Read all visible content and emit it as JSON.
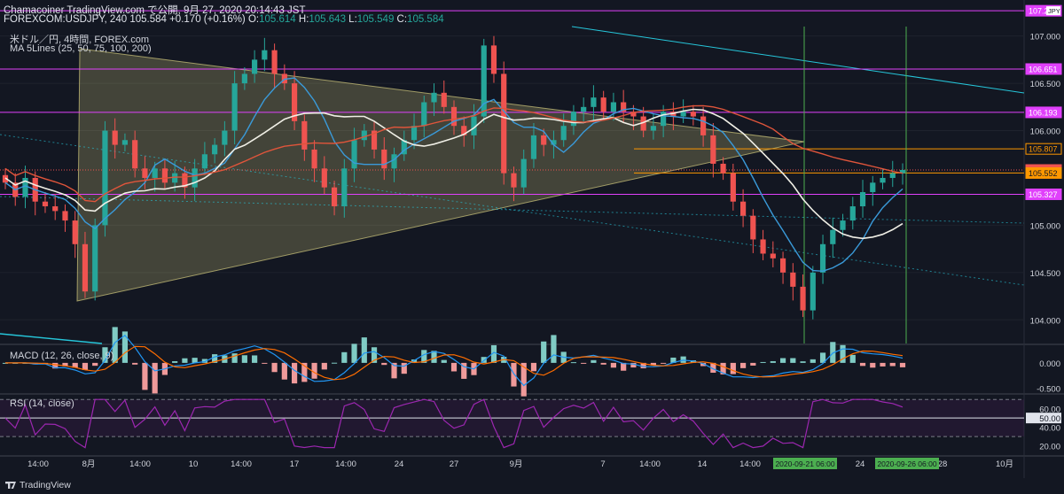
{
  "header": {
    "line1": "Chamacoiner TradingView.com で公開, 9月 27, 2020 20:14:43 JST",
    "line2_symbol": "FOREXCOM:USDJPY, 240",
    "last": "105.584",
    "change": "+0.170 (+0.16%)",
    "o_label": "O:",
    "o": "105.614",
    "h_label": "H:",
    "h": "105.643",
    "l_label": "L:",
    "l": "105.549",
    "c_label": "C:",
    "c": "105.584"
  },
  "legend": {
    "title": "米ドル／円, 4時間, FOREX.com",
    "ma": "MA 5Lines (25, 50, 75, 100, 200)",
    "macd": "MACD (12, 26, close, 9)",
    "rsi": "RSI (14, close)"
  },
  "brand": "TradingView",
  "colors": {
    "background": "#131722",
    "up": "#26a69a",
    "down": "#ef5350",
    "ma_white": "#f0efe6",
    "ma_orange": "#e0553b",
    "ma_blue": "#3a9ad9",
    "level": "#e040fb",
    "orange_level": "#ff9800",
    "triangle": "#f0e68c",
    "channel": "#26c6da",
    "vline": "#4caf50",
    "rsi": "#9c27b0"
  },
  "chart_data": {
    "type": "candlestick",
    "symbol": "USDJPY",
    "timeframe": "4h",
    "y_axis": {
      "ticks": [
        "107.000",
        "106.500",
        "106.000",
        "105.000",
        "104.500",
        "104.000"
      ],
      "ylim": [
        103.75,
        107.1
      ]
    },
    "x_ticks": [
      "14:00",
      "8月",
      "14:00",
      "10",
      "14:00",
      "17",
      "14:00",
      "24",
      "27",
      "9月",
      "7",
      "14:00",
      "14",
      "14:00",
      "21",
      "24",
      "28",
      "10月"
    ],
    "horizontal_levels": [
      "107.267",
      "106.651",
      "106.193",
      "105.807",
      "105.584",
      "105.552",
      "105.327"
    ],
    "price_labels": [
      {
        "text": "107.267",
        "note": "JPY"
      },
      {
        "text": "106.651"
      },
      {
        "text": "106.193"
      },
      {
        "text": "105.807"
      },
      {
        "text": "105.584"
      },
      {
        "text": "105.552"
      },
      {
        "text": "105.327"
      }
    ],
    "vertical_markers": [
      "2020-09-21 06:00",
      "2020-09-26 06:00"
    ],
    "close_path": [
      105.45,
      105.3,
      105.5,
      105.25,
      105.2,
      105.15,
      105.05,
      104.8,
      104.3,
      105.0,
      106.0,
      105.85,
      105.9,
      105.6,
      105.5,
      105.6,
      105.45,
      105.55,
      105.4,
      105.6,
      105.75,
      105.85,
      106.0,
      106.5,
      106.6,
      106.75,
      106.85,
      106.6,
      106.5,
      106.1,
      105.8,
      105.6,
      105.4,
      105.2,
      105.6,
      105.9,
      106.0,
      105.8,
      105.6,
      105.75,
      105.9,
      106.05,
      106.3,
      106.4,
      106.25,
      106.05,
      105.95,
      106.15,
      106.9,
      106.6,
      105.55,
      105.4,
      105.7,
      105.95,
      105.85,
      105.9,
      106.05,
      106.2,
      106.25,
      106.35,
      106.2,
      106.3,
      106.2,
      106.15,
      106.0,
      106.05,
      106.2,
      106.15,
      106.2,
      106.15,
      105.95,
      105.65,
      105.55,
      105.25,
      105.1,
      104.85,
      104.7,
      104.65,
      104.5,
      104.35,
      104.1,
      104.5,
      104.8,
      104.95,
      105.05,
      105.2,
      105.35,
      105.45,
      105.5,
      105.55,
      105.584
    ],
    "macd": {
      "ylim": [
        -0.6,
        0.35
      ],
      "ticks": [
        "0.000",
        "-0.500"
      ]
    },
    "rsi": {
      "ylim": [
        10,
        75
      ],
      "ticks": [
        "60.00",
        "50.00",
        "40.00",
        "20.00"
      ],
      "levels": [
        70,
        30
      ],
      "current": 50.0
    }
  }
}
